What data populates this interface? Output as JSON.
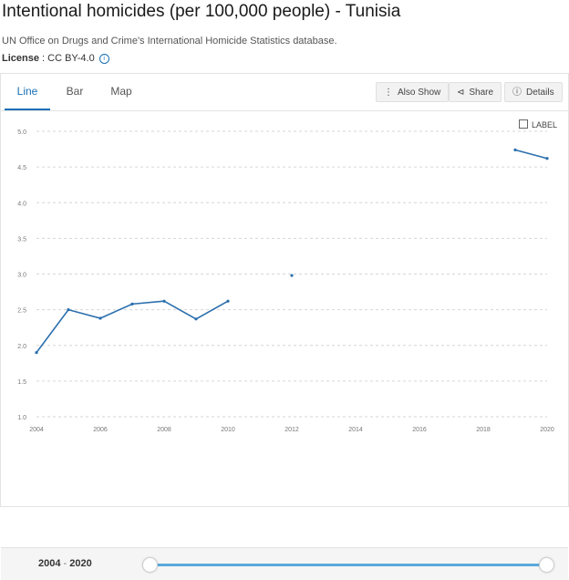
{
  "header": {
    "title": "Intentional homicides (per 100,000 people) - Tunisia",
    "source": "UN Office on Drugs and Crime's International Homicide Statistics database.",
    "license_label": "License",
    "license_value": " : CC BY-4.0",
    "info_icon": "info-icon"
  },
  "tabs": [
    {
      "label": "Line",
      "active": true
    },
    {
      "label": "Bar",
      "active": false
    },
    {
      "label": "Map",
      "active": false
    }
  ],
  "toolbar": {
    "also_show": "Also Show",
    "share": "Share",
    "details": "Details"
  },
  "label_toggle": "LABEL",
  "footer": {
    "range_start": "2004",
    "range_sep": " - ",
    "range_end": "2020"
  },
  "colors": {
    "accent": "#1a6fb5",
    "line": "#2b6fad",
    "slider": "#5aa9dc"
  },
  "chart_data": {
    "type": "line",
    "xlim": [
      2004,
      2020
    ],
    "ylim": [
      1.0,
      5.0
    ],
    "x_ticks": [
      "2004",
      "2006",
      "2008",
      "2010",
      "2012",
      "2014",
      "2016",
      "2018",
      "2020"
    ],
    "y_ticks": [
      "1.0",
      "1.5",
      "2.0",
      "2.5",
      "3.0",
      "3.5",
      "4.0",
      "4.5",
      "5.0"
    ],
    "grid": true,
    "series": [
      {
        "x": [
          2004,
          2005,
          2006,
          2007,
          2008,
          2009,
          2010,
          2011,
          2012,
          2013,
          2014,
          2015,
          2016,
          2017,
          2018,
          2019,
          2020
        ],
        "y": [
          1.9,
          2.5,
          2.38,
          2.58,
          2.62,
          2.37,
          2.62,
          null,
          2.98,
          null,
          null,
          null,
          null,
          null,
          null,
          4.74,
          4.62
        ]
      }
    ]
  }
}
